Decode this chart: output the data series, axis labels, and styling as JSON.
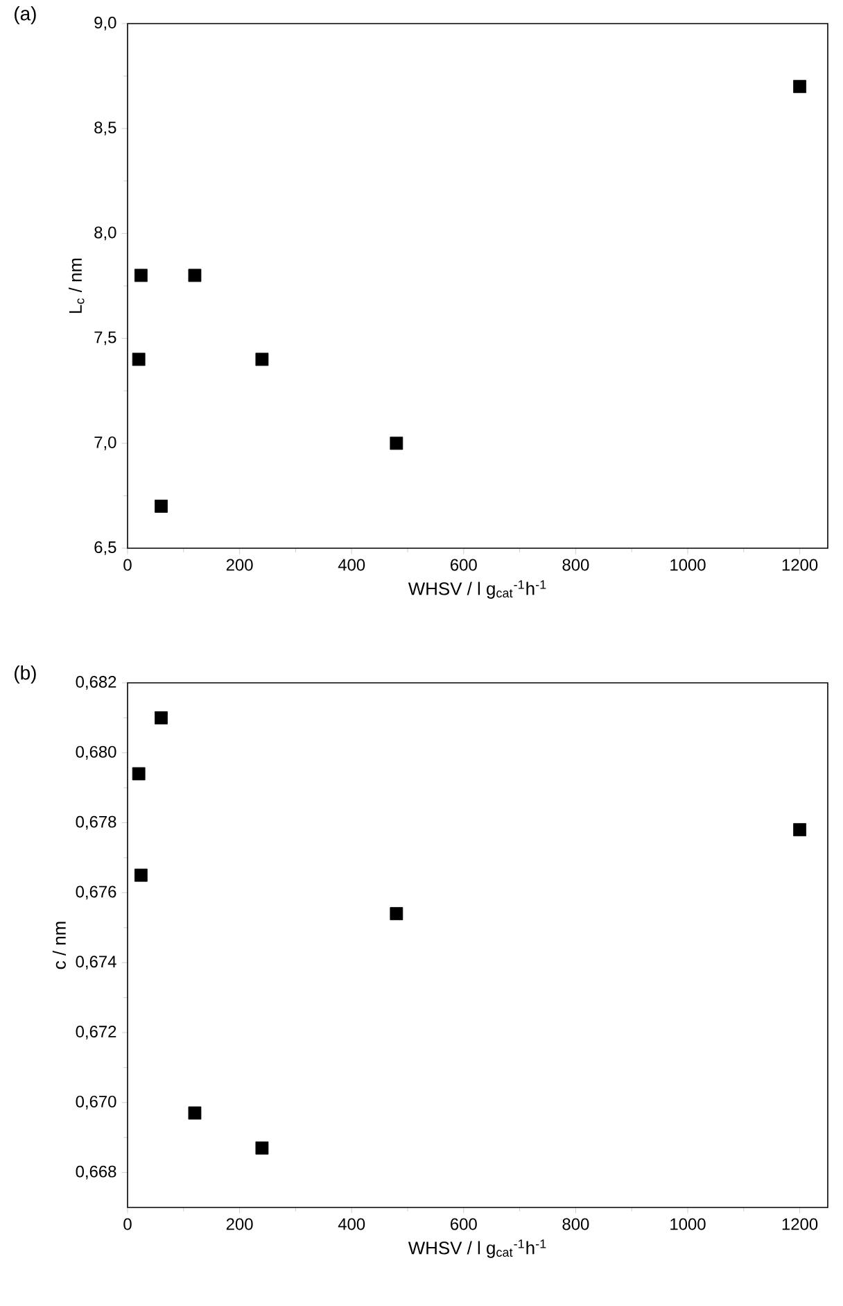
{
  "chart_data": [
    {
      "type": "scatter",
      "title": "(a)",
      "xlabel": "WHSV / l g$_{cat}$$^{-1}$h$^{-1}$",
      "ylabel": "L$_{c}$ / nm",
      "marker": "square",
      "series": [
        {
          "color": "#000000",
          "x": [
            20,
            24,
            60,
            120,
            240,
            480,
            1200
          ],
          "values": [
            7.4,
            7.8,
            6.7,
            7.8,
            7.4,
            7.0,
            8.7
          ]
        }
      ],
      "xlim": [
        0,
        1250
      ],
      "xticks": [
        0,
        200,
        400,
        600,
        800,
        1000,
        1200
      ],
      "ylim": [
        6.5,
        9.0
      ],
      "yticks": [
        {
          "value": 6.5,
          "label": "6,5"
        },
        {
          "value": 7.0,
          "label": "7,0"
        },
        {
          "value": 7.5,
          "label": "7,5"
        },
        {
          "value": 8.0,
          "label": "8,0"
        },
        {
          "value": 8.5,
          "label": "8,5"
        },
        {
          "value": 9.0,
          "label": "9,0"
        }
      ]
    },
    {
      "type": "scatter",
      "title": "(b)",
      "xlabel": "WHSV / l g$_{cat}$$^{-1}$h$^{-1}$",
      "ylabel": "c / nm",
      "marker": "square",
      "series": [
        {
          "color": "#000000",
          "x": [
            20,
            24,
            60,
            120,
            240,
            480,
            1200
          ],
          "values": [
            0.6794,
            0.6765,
            0.681,
            0.6697,
            0.6687,
            0.6754,
            0.6778
          ]
        }
      ],
      "xlim": [
        0,
        1250
      ],
      "xticks": [
        0,
        200,
        400,
        600,
        800,
        1000,
        1200
      ],
      "ylim": [
        0.667,
        0.682
      ],
      "yticks": [
        {
          "value": 0.668,
          "label": "0,668"
        },
        {
          "value": 0.67,
          "label": "0,670"
        },
        {
          "value": 0.672,
          "label": "0,672"
        },
        {
          "value": 0.674,
          "label": "0,674"
        },
        {
          "value": 0.676,
          "label": "0,676"
        },
        {
          "value": 0.678,
          "label": "0,678"
        },
        {
          "value": 0.68,
          "label": "0,680"
        },
        {
          "value": 0.682,
          "label": "0,682"
        }
      ]
    }
  ]
}
